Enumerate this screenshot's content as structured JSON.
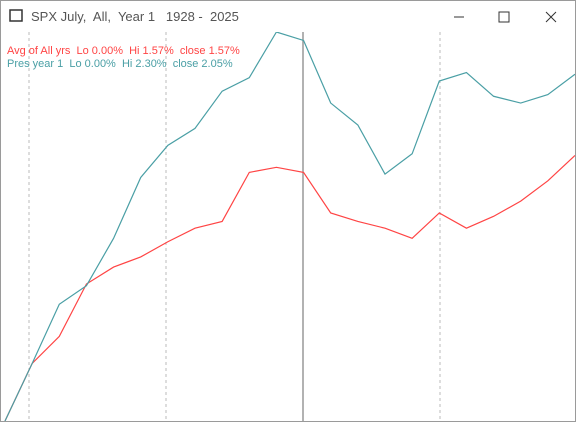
{
  "chart_data": {
    "type": "line",
    "title": "SPX July,  All,  Year 1   1928 -  2025",
    "ylim": [
      0,
      2.3
    ],
    "series": [
      {
        "name": "Avg of All yrs  Lo 0.00%  Hi 1.57%  close 1.57%",
        "color": "#ff4444",
        "values": [
          0,
          0.34,
          0.5,
          0.81,
          0.91,
          0.97,
          1.06,
          1.14,
          1.18,
          1.47,
          1.5,
          1.47,
          1.23,
          1.18,
          1.14,
          1.08,
          1.23,
          1.14,
          1.21,
          1.3,
          1.42,
          1.57
        ]
      },
      {
        "name": "Pres year 1  Lo 0.00%  Hi 2.30%  close 2.05%",
        "color": "#4a9fa5",
        "values": [
          0,
          0.34,
          0.69,
          0.8,
          1.08,
          1.44,
          1.63,
          1.73,
          1.95,
          2.03,
          2.3,
          2.25,
          1.88,
          1.75,
          1.46,
          1.58,
          2.01,
          2.06,
          1.92,
          1.88,
          1.93,
          2.05
        ]
      }
    ]
  }
}
